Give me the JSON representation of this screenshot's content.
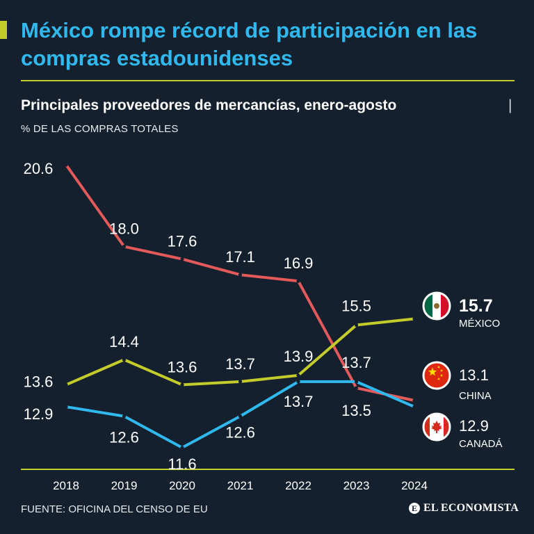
{
  "header": {
    "title": "México rompe récord de participación en las compras estadounidenses",
    "subtitle": "Principales proveedores de mercancías, enero-agosto",
    "separator": "|",
    "units": "% DE LAS COMPRAS TOTALES"
  },
  "footer": {
    "source": "FUENTE: OFICINA DEL CENSO DE EU",
    "brand": "EL ECONOMISTA",
    "brand_mark": "E"
  },
  "colors": {
    "background": "#14202e",
    "title": "#2fb9ee",
    "accent": "#c3cc2a",
    "mexico": "#c3cc2a",
    "china": "#e45a5a",
    "canada": "#2fb9ee"
  },
  "chart_data": {
    "type": "line",
    "categories": [
      "2018",
      "2019",
      "2020",
      "2021",
      "2022",
      "2023",
      "2024"
    ],
    "ylim": [
      11,
      21.5
    ],
    "grid": false,
    "legend": "right",
    "series": [
      {
        "id": "china",
        "name": "CHINA",
        "values": [
          20.6,
          18.0,
          17.6,
          17.1,
          16.9,
          13.5,
          13.1
        ],
        "labels": [
          "20.6",
          "18.0",
          "17.6",
          "17.1",
          "16.9",
          "13.5",
          "13.1"
        ],
        "flag_icon": "china-flag-icon"
      },
      {
        "id": "mexico",
        "name": "MÉXICO",
        "values": [
          13.6,
          14.4,
          13.6,
          13.7,
          13.9,
          15.5,
          15.7
        ],
        "labels": [
          "13.6",
          "14.4",
          "13.6",
          "13.7",
          "13.9",
          "15.5",
          "15.7"
        ],
        "flag_icon": "mexico-flag-icon"
      },
      {
        "id": "canada",
        "name": "CANADÁ",
        "values": [
          12.9,
          12.6,
          11.6,
          12.6,
          13.7,
          13.7,
          12.9
        ],
        "labels": [
          "12.9",
          "12.6",
          "11.6",
          "12.6",
          "13.7",
          "13.7",
          "12.9"
        ],
        "flag_icon": "canada-flag-icon"
      }
    ]
  }
}
